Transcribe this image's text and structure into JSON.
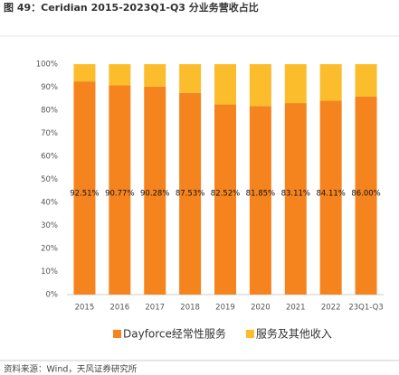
{
  "chart_data": {
    "type": "stacked_bar",
    "title": "图 49：Ceridian 2015-2023Q1-Q3 分业务营收占比",
    "source": "资料来源：Wind，天风证券研究所",
    "categories": [
      "2015",
      "2016",
      "2017",
      "2018",
      "2019",
      "2020",
      "2021",
      "2022",
      "23Q1-Q3"
    ],
    "series": [
      {
        "name": "Dayforce经常性服务",
        "color": "#f5841f",
        "values": [
          92.51,
          90.77,
          90.28,
          87.53,
          82.52,
          81.85,
          83.11,
          84.11,
          86.0
        ],
        "value_labels": [
          "92.51%",
          "90.77%",
          "90.28%",
          "87.53%",
          "82.52%",
          "81.85%",
          "83.11%",
          "84.11%",
          "86.00%"
        ]
      },
      {
        "name": "服务及其他收入",
        "color": "#fbbd2c",
        "values": [
          7.49,
          9.23,
          9.72,
          12.47,
          17.48,
          18.15,
          16.89,
          15.89,
          14.0
        ]
      }
    ],
    "ylim": [
      0,
      100
    ],
    "yticks": [
      {
        "value": 0,
        "label": "0%"
      },
      {
        "value": 10,
        "label": "10%"
      },
      {
        "value": 20,
        "label": "20%"
      },
      {
        "value": 30,
        "label": "30%"
      },
      {
        "value": 40,
        "label": "40%"
      },
      {
        "value": 50,
        "label": "50%"
      },
      {
        "value": 60,
        "label": "60%"
      },
      {
        "value": 70,
        "label": "70%"
      },
      {
        "value": 80,
        "label": "80%"
      },
      {
        "value": 90,
        "label": "90%"
      },
      {
        "value": 100,
        "label": "100%"
      }
    ],
    "grid": false,
    "legend": "bottom"
  }
}
